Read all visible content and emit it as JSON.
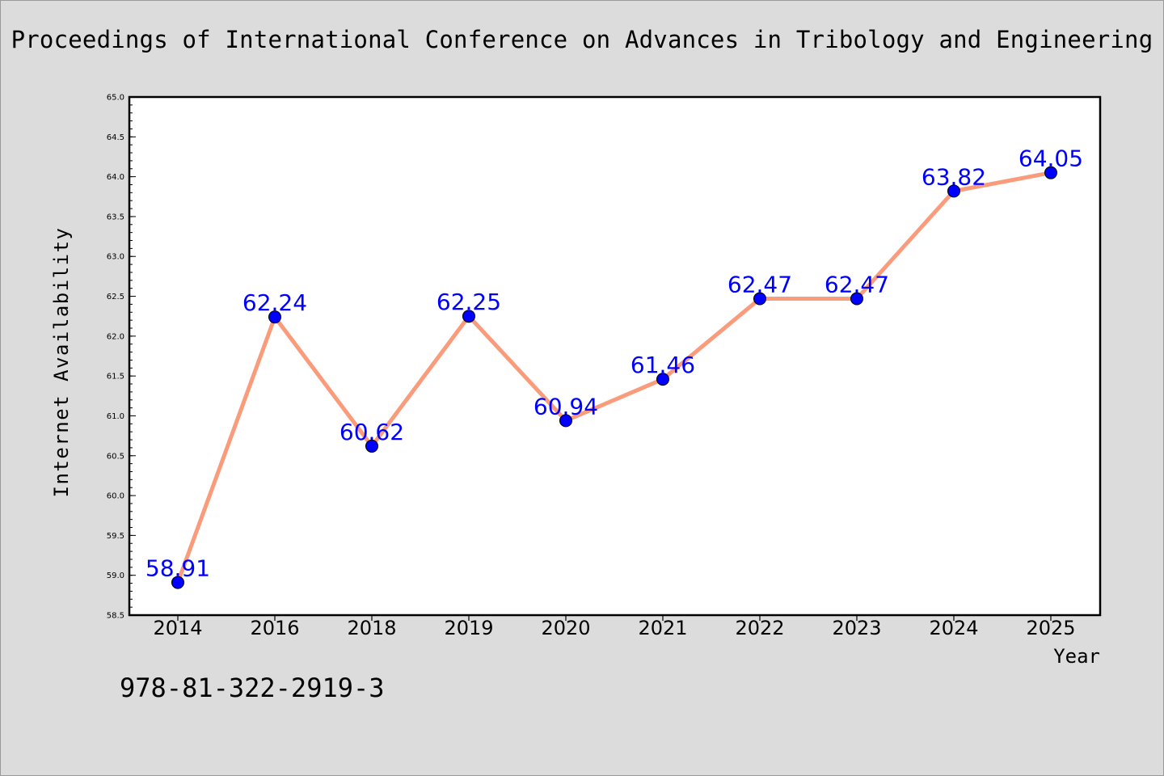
{
  "header": {
    "title": "Proceedings of International Conference on Advances in Tribology and Engineering"
  },
  "footer": {
    "isbn": "978-81-322-2919-3"
  },
  "chart_data": {
    "type": "line",
    "title": "Proceedings of International Conference on Advances in Tribology and Engineering",
    "xlabel": "Year",
    "ylabel": "Internet Availability",
    "categories": [
      "2014",
      "2016",
      "2018",
      "2019",
      "2020",
      "2021",
      "2022",
      "2023",
      "2024",
      "2025"
    ],
    "series": [
      {
        "values": [
          58.91,
          62.24,
          60.62,
          62.25,
          60.94,
          61.46,
          62.47,
          62.47,
          63.82,
          64.05
        ],
        "line_color": "#fa9c7c",
        "marker_color": "#0000ff"
      }
    ],
    "data_labels": [
      "58.91",
      "62.24",
      "60.62",
      "62.25",
      "60.94",
      "61.46",
      "62.47",
      "62.47",
      "63.82",
      "64.05"
    ],
    "data_label_color": "#0000ff",
    "ylim": [
      58.5,
      65.0
    ],
    "y_ticks": [
      "58.5",
      "59.0",
      "59.5",
      "60.0",
      "60.5",
      "61.0",
      "61.5",
      "62.0",
      "62.5",
      "63.0",
      "63.5",
      "64.0",
      "64.5",
      "65.0"
    ],
    "grid": false,
    "legend": "none",
    "colors": {
      "page_background": "#dcdcdc",
      "plot_background": "#ffffff"
    }
  }
}
